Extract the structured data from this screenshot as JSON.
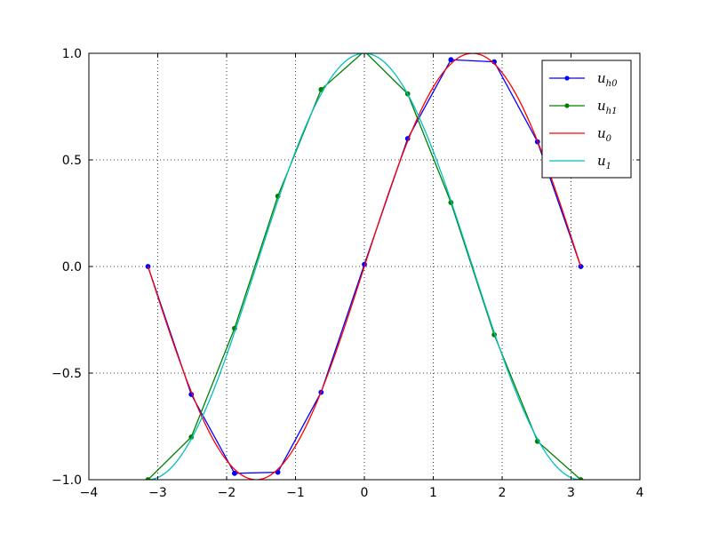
{
  "chart_data": {
    "type": "line",
    "title": "",
    "xlabel": "",
    "ylabel": "",
    "xlim": [
      -4,
      4
    ],
    "ylim": [
      -1.0,
      1.0
    ],
    "xticks": [
      -4,
      -3,
      -2,
      -1,
      0,
      1,
      2,
      3,
      4
    ],
    "xtick_labels": [
      "−4",
      "−3",
      "−2",
      "−1",
      "0",
      "1",
      "2",
      "3",
      "4"
    ],
    "yticks": [
      -1.0,
      -0.5,
      0.0,
      0.5,
      1.0
    ],
    "ytick_labels": [
      "−1.0",
      "−0.5",
      "0.0",
      "0.5",
      "1.0"
    ],
    "grid": true,
    "legend_position": "top-right",
    "series": [
      {
        "name": "u_h0",
        "legend_main": "u",
        "legend_sub": "h0",
        "style": "line-markers",
        "color": "#0000ff",
        "x": [
          -3.1416,
          -2.5133,
          -1.885,
          -1.2566,
          -0.6283,
          0.0,
          0.6283,
          1.2566,
          1.885,
          2.5133,
          3.1416
        ],
        "y": [
          0.0,
          -0.6,
          -0.97,
          -0.965,
          -0.59,
          0.01,
          0.6,
          0.97,
          0.96,
          0.585,
          0.0
        ]
      },
      {
        "name": "u_h1",
        "legend_main": "u",
        "legend_sub": "h1",
        "style": "line-markers",
        "color": "#008000",
        "x": [
          -3.1416,
          -2.5133,
          -1.885,
          -1.2566,
          -0.6283,
          0.0,
          0.6283,
          1.2566,
          1.885,
          2.5133,
          3.1416
        ],
        "y": [
          -1.0,
          -0.8,
          -0.29,
          0.33,
          0.83,
          1.01,
          0.81,
          0.3,
          -0.32,
          -0.82,
          -1.0
        ]
      },
      {
        "name": "u_0",
        "legend_main": "u",
        "legend_sub": "0",
        "style": "line",
        "color": "#ff0000",
        "function": "sin",
        "domain": [
          -3.1416,
          3.1416
        ]
      },
      {
        "name": "u_1",
        "legend_main": "u",
        "legend_sub": "1",
        "style": "line",
        "color": "#00bfbf",
        "function": "cos",
        "domain": [
          -3.1416,
          3.1416
        ]
      }
    ]
  }
}
